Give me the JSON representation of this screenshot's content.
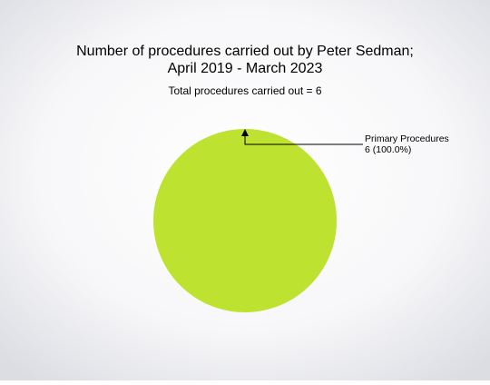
{
  "chart_data": {
    "type": "pie",
    "title": [
      "Number of procedures carried out by Peter Sedman;",
      "April 2019 - March 2023"
    ],
    "subtitle": "Total procedures carried out = 6",
    "categories": [
      "Primary Procedures"
    ],
    "values": [
      6
    ],
    "value_labels": [
      "6 (100.0%)"
    ],
    "colors": [
      "#bde22f"
    ]
  }
}
